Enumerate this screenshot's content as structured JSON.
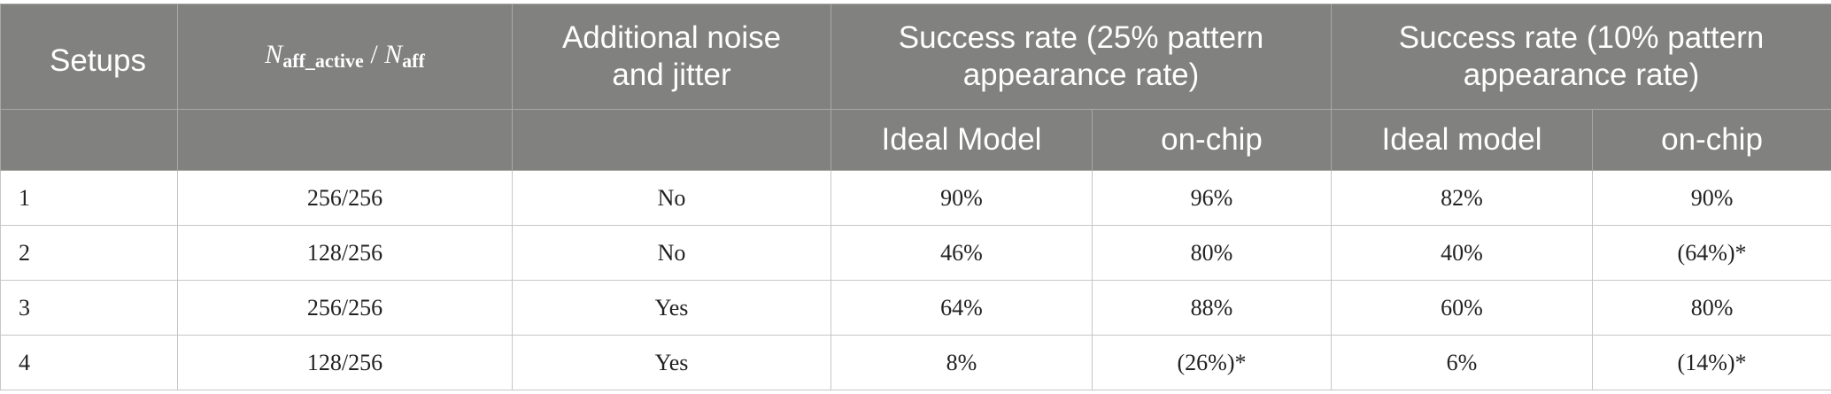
{
  "table": {
    "headers_top": {
      "setups": "Setups",
      "ratio": {
        "n": "N",
        "sub_active": "aff_active",
        "sep": " / ",
        "n2": "N",
        "sub_all": "aff"
      },
      "noise": "Additional noise and jitter",
      "rate25": "Success rate (25% pattern appearance rate)",
      "rate10": "Success rate (10% pattern appearance rate)"
    },
    "headers_sub": {
      "ideal25": "Ideal Model",
      "chip25": "on-chip",
      "ideal10": "Ideal model",
      "chip10": "on-chip"
    },
    "rows": [
      {
        "setup": "1",
        "ratio": "256/256",
        "noise": "No",
        "ideal25": "90%",
        "chip25": "96%",
        "ideal10": "82%",
        "chip10": "90%"
      },
      {
        "setup": "2",
        "ratio": "128/256",
        "noise": "No",
        "ideal25": "46%",
        "chip25": "80%",
        "ideal10": "40%",
        "chip10": "(64%)*"
      },
      {
        "setup": "3",
        "ratio": "256/256",
        "noise": "Yes",
        "ideal25": "64%",
        "chip25": "88%",
        "ideal10": "60%",
        "chip10": "80%"
      },
      {
        "setup": "4",
        "ratio": "128/256",
        "noise": "Yes",
        "ideal25": "8%",
        "chip25": "(26%)*",
        "ideal10": "6%",
        "chip10": "(14%)*"
      }
    ]
  }
}
